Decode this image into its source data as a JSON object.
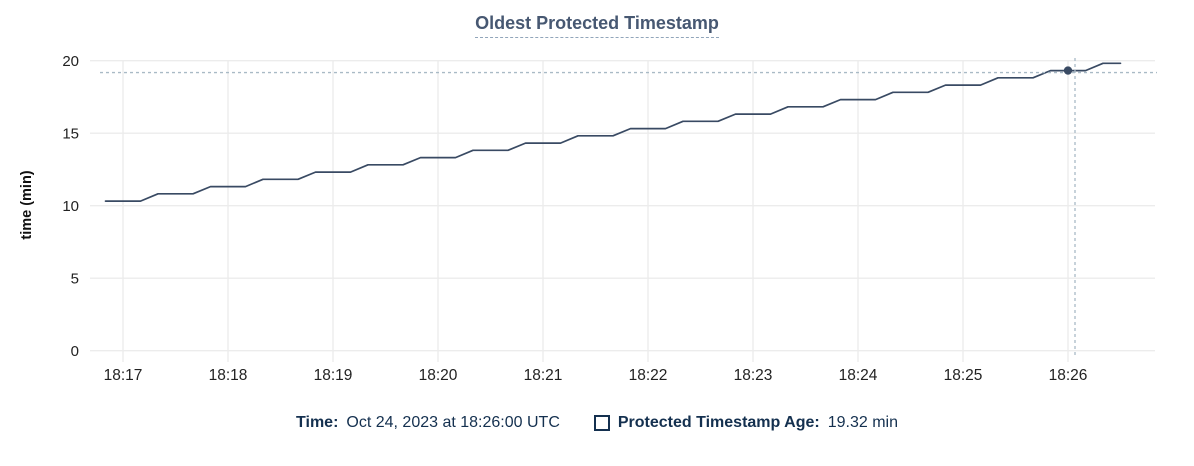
{
  "chart_data": {
    "type": "line",
    "title": "Oldest Protected Timestamp",
    "xlabel": "",
    "ylabel": "time (min)",
    "ylim": [
      0,
      20
    ],
    "yticks": [
      0,
      5,
      10,
      15,
      20
    ],
    "xticks": [
      "18:17",
      "18:18",
      "18:19",
      "18:20",
      "18:21",
      "18:22",
      "18:23",
      "18:24",
      "18:25",
      "18:26"
    ],
    "grid": true,
    "legend_position": "bottom",
    "series": [
      {
        "name": "Protected Timestamp Age",
        "unit": "min",
        "color": "#394a63",
        "points": [
          [
            "18:16:50",
            10.32
          ],
          [
            "18:17:00",
            10.32
          ],
          [
            "18:17:10",
            10.32
          ],
          [
            "18:17:20",
            10.82
          ],
          [
            "18:17:30",
            10.82
          ],
          [
            "18:17:40",
            10.82
          ],
          [
            "18:17:50",
            11.32
          ],
          [
            "18:18:00",
            11.32
          ],
          [
            "18:18:10",
            11.32
          ],
          [
            "18:18:20",
            11.82
          ],
          [
            "18:18:30",
            11.82
          ],
          [
            "18:18:40",
            11.82
          ],
          [
            "18:18:50",
            12.32
          ],
          [
            "18:19:00",
            12.32
          ],
          [
            "18:19:10",
            12.32
          ],
          [
            "18:19:20",
            12.82
          ],
          [
            "18:19:30",
            12.82
          ],
          [
            "18:19:40",
            12.82
          ],
          [
            "18:19:50",
            13.32
          ],
          [
            "18:20:00",
            13.32
          ],
          [
            "18:20:10",
            13.32
          ],
          [
            "18:20:20",
            13.82
          ],
          [
            "18:20:30",
            13.82
          ],
          [
            "18:20:40",
            13.82
          ],
          [
            "18:20:50",
            14.32
          ],
          [
            "18:21:00",
            14.32
          ],
          [
            "18:21:10",
            14.32
          ],
          [
            "18:21:20",
            14.82
          ],
          [
            "18:21:30",
            14.82
          ],
          [
            "18:21:40",
            14.82
          ],
          [
            "18:21:50",
            15.32
          ],
          [
            "18:22:00",
            15.32
          ],
          [
            "18:22:10",
            15.32
          ],
          [
            "18:22:20",
            15.82
          ],
          [
            "18:22:30",
            15.82
          ],
          [
            "18:22:40",
            15.82
          ],
          [
            "18:22:50",
            16.32
          ],
          [
            "18:23:00",
            16.32
          ],
          [
            "18:23:10",
            16.32
          ],
          [
            "18:23:20",
            16.82
          ],
          [
            "18:23:30",
            16.82
          ],
          [
            "18:23:40",
            16.82
          ],
          [
            "18:23:50",
            17.32
          ],
          [
            "18:24:00",
            17.32
          ],
          [
            "18:24:10",
            17.32
          ],
          [
            "18:24:20",
            17.82
          ],
          [
            "18:24:30",
            17.82
          ],
          [
            "18:24:40",
            17.82
          ],
          [
            "18:24:50",
            18.32
          ],
          [
            "18:25:00",
            18.32
          ],
          [
            "18:25:10",
            18.32
          ],
          [
            "18:25:20",
            18.82
          ],
          [
            "18:25:30",
            18.82
          ],
          [
            "18:25:40",
            18.82
          ],
          [
            "18:25:50",
            19.32
          ],
          [
            "18:26:00",
            19.32
          ],
          [
            "18:26:10",
            19.32
          ],
          [
            "18:26:20",
            19.82
          ],
          [
            "18:26:30",
            19.82
          ]
        ]
      }
    ],
    "crosshair": {
      "time": "18:26:00",
      "value": 19.32
    }
  },
  "legend": {
    "time_label": "Time:",
    "time_value": "Oct 24, 2023 at 18:26:00 UTC",
    "series_label": "Protected Timestamp Age:",
    "series_value": "19.32 min"
  },
  "colors": {
    "line": "#394a63",
    "title": "#475872",
    "legend_text": "#14304f",
    "grid": "#ececec",
    "crosshair": "#a9bac6",
    "tick_label": "#222222",
    "axis_title": "#111111"
  }
}
